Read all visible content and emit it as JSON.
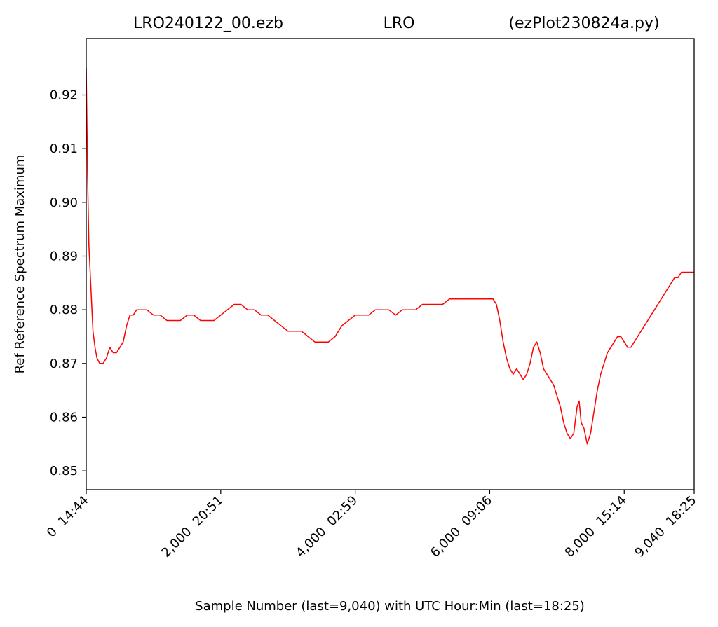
{
  "chart_data": {
    "type": "line",
    "title_parts": {
      "left": "LRO240122_00.ezb",
      "center": "LRO",
      "right": "(ezPlot230824a.py)"
    },
    "xlabel": "Sample Number (last=9,040) with UTC Hour:Min (last=18:25)",
    "ylabel": "Ref Reference Spectrum Maximum",
    "xlim": [
      0,
      9040
    ],
    "ylim": [
      0.8465,
      0.9305
    ],
    "x_ticks": [
      {
        "value": 0,
        "label": "0  14:44"
      },
      {
        "value": 2000,
        "label": "2,000  20:51"
      },
      {
        "value": 4000,
        "label": "4,000  02:59"
      },
      {
        "value": 6000,
        "label": "6,000  09:06"
      },
      {
        "value": 8000,
        "label": "8,000  15:14"
      },
      {
        "value": 9040,
        "label": "9,040  18:25"
      }
    ],
    "y_ticks": [
      {
        "value": 0.85,
        "label": "0.85"
      },
      {
        "value": 0.86,
        "label": "0.86"
      },
      {
        "value": 0.87,
        "label": "0.87"
      },
      {
        "value": 0.88,
        "label": "0.88"
      },
      {
        "value": 0.89,
        "label": "0.89"
      },
      {
        "value": 0.9,
        "label": "0.90"
      },
      {
        "value": 0.91,
        "label": "0.91"
      },
      {
        "value": 0.92,
        "label": "0.92"
      }
    ],
    "grid": false,
    "series": [
      {
        "color": "#ff0000",
        "points": [
          [
            0,
            0.925
          ],
          [
            20,
            0.905
          ],
          [
            40,
            0.892
          ],
          [
            70,
            0.884
          ],
          [
            100,
            0.876
          ],
          [
            130,
            0.873
          ],
          [
            160,
            0.871
          ],
          [
            200,
            0.87
          ],
          [
            250,
            0.87
          ],
          [
            300,
            0.871
          ],
          [
            350,
            0.873
          ],
          [
            400,
            0.872
          ],
          [
            450,
            0.872
          ],
          [
            500,
            0.873
          ],
          [
            550,
            0.874
          ],
          [
            600,
            0.877
          ],
          [
            650,
            0.879
          ],
          [
            700,
            0.879
          ],
          [
            750,
            0.88
          ],
          [
            800,
            0.88
          ],
          [
            900,
            0.88
          ],
          [
            1000,
            0.879
          ],
          [
            1100,
            0.879
          ],
          [
            1200,
            0.878
          ],
          [
            1300,
            0.878
          ],
          [
            1400,
            0.878
          ],
          [
            1500,
            0.879
          ],
          [
            1600,
            0.879
          ],
          [
            1700,
            0.878
          ],
          [
            1800,
            0.878
          ],
          [
            1900,
            0.878
          ],
          [
            2000,
            0.879
          ],
          [
            2100,
            0.88
          ],
          [
            2200,
            0.881
          ],
          [
            2300,
            0.881
          ],
          [
            2400,
            0.88
          ],
          [
            2500,
            0.88
          ],
          [
            2600,
            0.879
          ],
          [
            2700,
            0.879
          ],
          [
            2800,
            0.878
          ],
          [
            2900,
            0.877
          ],
          [
            3000,
            0.876
          ],
          [
            3100,
            0.876
          ],
          [
            3200,
            0.876
          ],
          [
            3300,
            0.875
          ],
          [
            3400,
            0.874
          ],
          [
            3500,
            0.874
          ],
          [
            3600,
            0.874
          ],
          [
            3700,
            0.875
          ],
          [
            3800,
            0.877
          ],
          [
            3900,
            0.878
          ],
          [
            4000,
            0.879
          ],
          [
            4100,
            0.879
          ],
          [
            4200,
            0.879
          ],
          [
            4300,
            0.88
          ],
          [
            4400,
            0.88
          ],
          [
            4500,
            0.88
          ],
          [
            4600,
            0.879
          ],
          [
            4700,
            0.88
          ],
          [
            4800,
            0.88
          ],
          [
            4900,
            0.88
          ],
          [
            5000,
            0.881
          ],
          [
            5100,
            0.881
          ],
          [
            5200,
            0.881
          ],
          [
            5300,
            0.881
          ],
          [
            5400,
            0.882
          ],
          [
            5500,
            0.882
          ],
          [
            5600,
            0.882
          ],
          [
            5700,
            0.882
          ],
          [
            5800,
            0.882
          ],
          [
            5900,
            0.882
          ],
          [
            6000,
            0.882
          ],
          [
            6050,
            0.882
          ],
          [
            6100,
            0.881
          ],
          [
            6150,
            0.878
          ],
          [
            6200,
            0.874
          ],
          [
            6250,
            0.871
          ],
          [
            6300,
            0.869
          ],
          [
            6350,
            0.868
          ],
          [
            6400,
            0.869
          ],
          [
            6450,
            0.868
          ],
          [
            6500,
            0.867
          ],
          [
            6550,
            0.868
          ],
          [
            6600,
            0.87
          ],
          [
            6650,
            0.873
          ],
          [
            6700,
            0.874
          ],
          [
            6750,
            0.872
          ],
          [
            6800,
            0.869
          ],
          [
            6850,
            0.868
          ],
          [
            6900,
            0.867
          ],
          [
            6950,
            0.866
          ],
          [
            7000,
            0.864
          ],
          [
            7050,
            0.862
          ],
          [
            7100,
            0.859
          ],
          [
            7150,
            0.857
          ],
          [
            7200,
            0.856
          ],
          [
            7250,
            0.857
          ],
          [
            7300,
            0.862
          ],
          [
            7330,
            0.863
          ],
          [
            7360,
            0.859
          ],
          [
            7400,
            0.858
          ],
          [
            7450,
            0.855
          ],
          [
            7500,
            0.857
          ],
          [
            7550,
            0.861
          ],
          [
            7600,
            0.865
          ],
          [
            7650,
            0.868
          ],
          [
            7700,
            0.87
          ],
          [
            7750,
            0.872
          ],
          [
            7800,
            0.873
          ],
          [
            7850,
            0.874
          ],
          [
            7900,
            0.875
          ],
          [
            7950,
            0.875
          ],
          [
            8000,
            0.874
          ],
          [
            8050,
            0.873
          ],
          [
            8100,
            0.873
          ],
          [
            8150,
            0.874
          ],
          [
            8200,
            0.875
          ],
          [
            8250,
            0.876
          ],
          [
            8300,
            0.877
          ],
          [
            8350,
            0.878
          ],
          [
            8400,
            0.879
          ],
          [
            8450,
            0.88
          ],
          [
            8500,
            0.881
          ],
          [
            8550,
            0.882
          ],
          [
            8600,
            0.883
          ],
          [
            8650,
            0.884
          ],
          [
            8700,
            0.885
          ],
          [
            8750,
            0.886
          ],
          [
            8800,
            0.886
          ],
          [
            8850,
            0.887
          ],
          [
            8900,
            0.887
          ],
          [
            8950,
            0.887
          ],
          [
            9000,
            0.887
          ],
          [
            9040,
            0.887
          ]
        ]
      }
    ]
  }
}
